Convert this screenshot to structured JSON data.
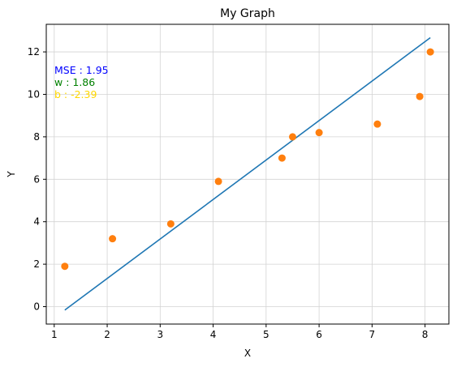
{
  "chart_data": {
    "type": "scatter",
    "title": "My Graph",
    "xlabel": "X",
    "ylabel": "Y",
    "xlim": [
      0.85,
      8.45
    ],
    "ylim": [
      -0.82,
      13.3
    ],
    "xticks": [
      1,
      2,
      3,
      4,
      5,
      6,
      7,
      8
    ],
    "yticks": [
      0,
      2,
      4,
      6,
      8,
      10,
      12
    ],
    "grid": true,
    "points": [
      {
        "x": 1.2,
        "y": 1.9
      },
      {
        "x": 2.1,
        "y": 3.2
      },
      {
        "x": 3.2,
        "y": 3.9
      },
      {
        "x": 4.1,
        "y": 5.9
      },
      {
        "x": 5.3,
        "y": 7.0
      },
      {
        "x": 5.5,
        "y": 8.0
      },
      {
        "x": 6.0,
        "y": 8.2
      },
      {
        "x": 7.1,
        "y": 8.6
      },
      {
        "x": 7.9,
        "y": 9.9
      },
      {
        "x": 8.1,
        "y": 12.0
      }
    ],
    "fit_line": {
      "x": [
        1.2,
        8.1
      ],
      "y": [
        -0.16,
        12.67
      ]
    },
    "annotations": [
      {
        "text": "MSE : 1.95",
        "color": "#0000ff"
      },
      {
        "text": "w : 1.86",
        "color": "#008000"
      },
      {
        "text": "b : -2.39",
        "color": "#ffd700"
      }
    ],
    "colors": {
      "line": "#1f77b4",
      "points": "#ff7f0e",
      "grid": "#d3d3d3",
      "axes": "#000000"
    }
  }
}
